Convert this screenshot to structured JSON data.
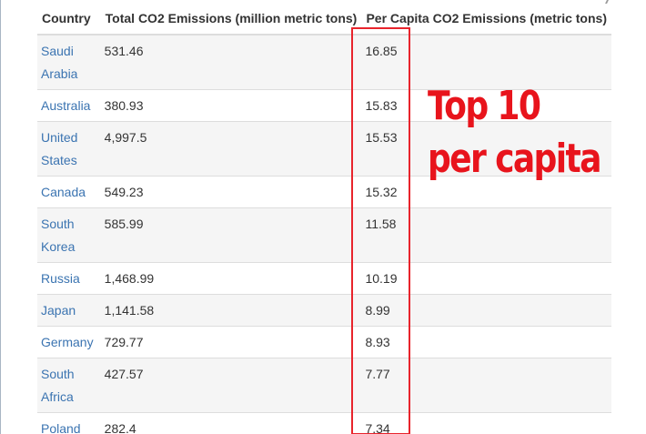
{
  "table": {
    "headers": {
      "country": "Country",
      "total": "Total CO2 Emissions (million metric tons)",
      "per_capita": "Per Capita CO2 Emissions (metric tons)"
    },
    "rows": [
      {
        "country": "Saudi Arabia",
        "total": "531.46",
        "per_capita": "16.85"
      },
      {
        "country": "Australia",
        "total": "380.93",
        "per_capita": "15.83"
      },
      {
        "country": "United States",
        "total": "4,997.5",
        "per_capita": "15.53"
      },
      {
        "country": "Canada",
        "total": "549.23",
        "per_capita": "15.32"
      },
      {
        "country": "South Korea",
        "total": "585.99",
        "per_capita": "11.58"
      },
      {
        "country": "Russia",
        "total": "1,468.99",
        "per_capita": "10.19"
      },
      {
        "country": "Japan",
        "total": "1,141.58",
        "per_capita": "8.99"
      },
      {
        "country": "Germany",
        "total": "729.77",
        "per_capita": "8.93"
      },
      {
        "country": "South Africa",
        "total": "427.57",
        "per_capita": "7.77"
      },
      {
        "country": "Poland",
        "total": "282.4",
        "per_capita": "7.34"
      }
    ]
  },
  "annotation": {
    "line1": "Top 10",
    "line2": "per capita",
    "color": "#e8141c"
  },
  "colors": {
    "link": "#3b74b1",
    "stripe": "#f5f5f5",
    "highlight": "#e8242c"
  }
}
